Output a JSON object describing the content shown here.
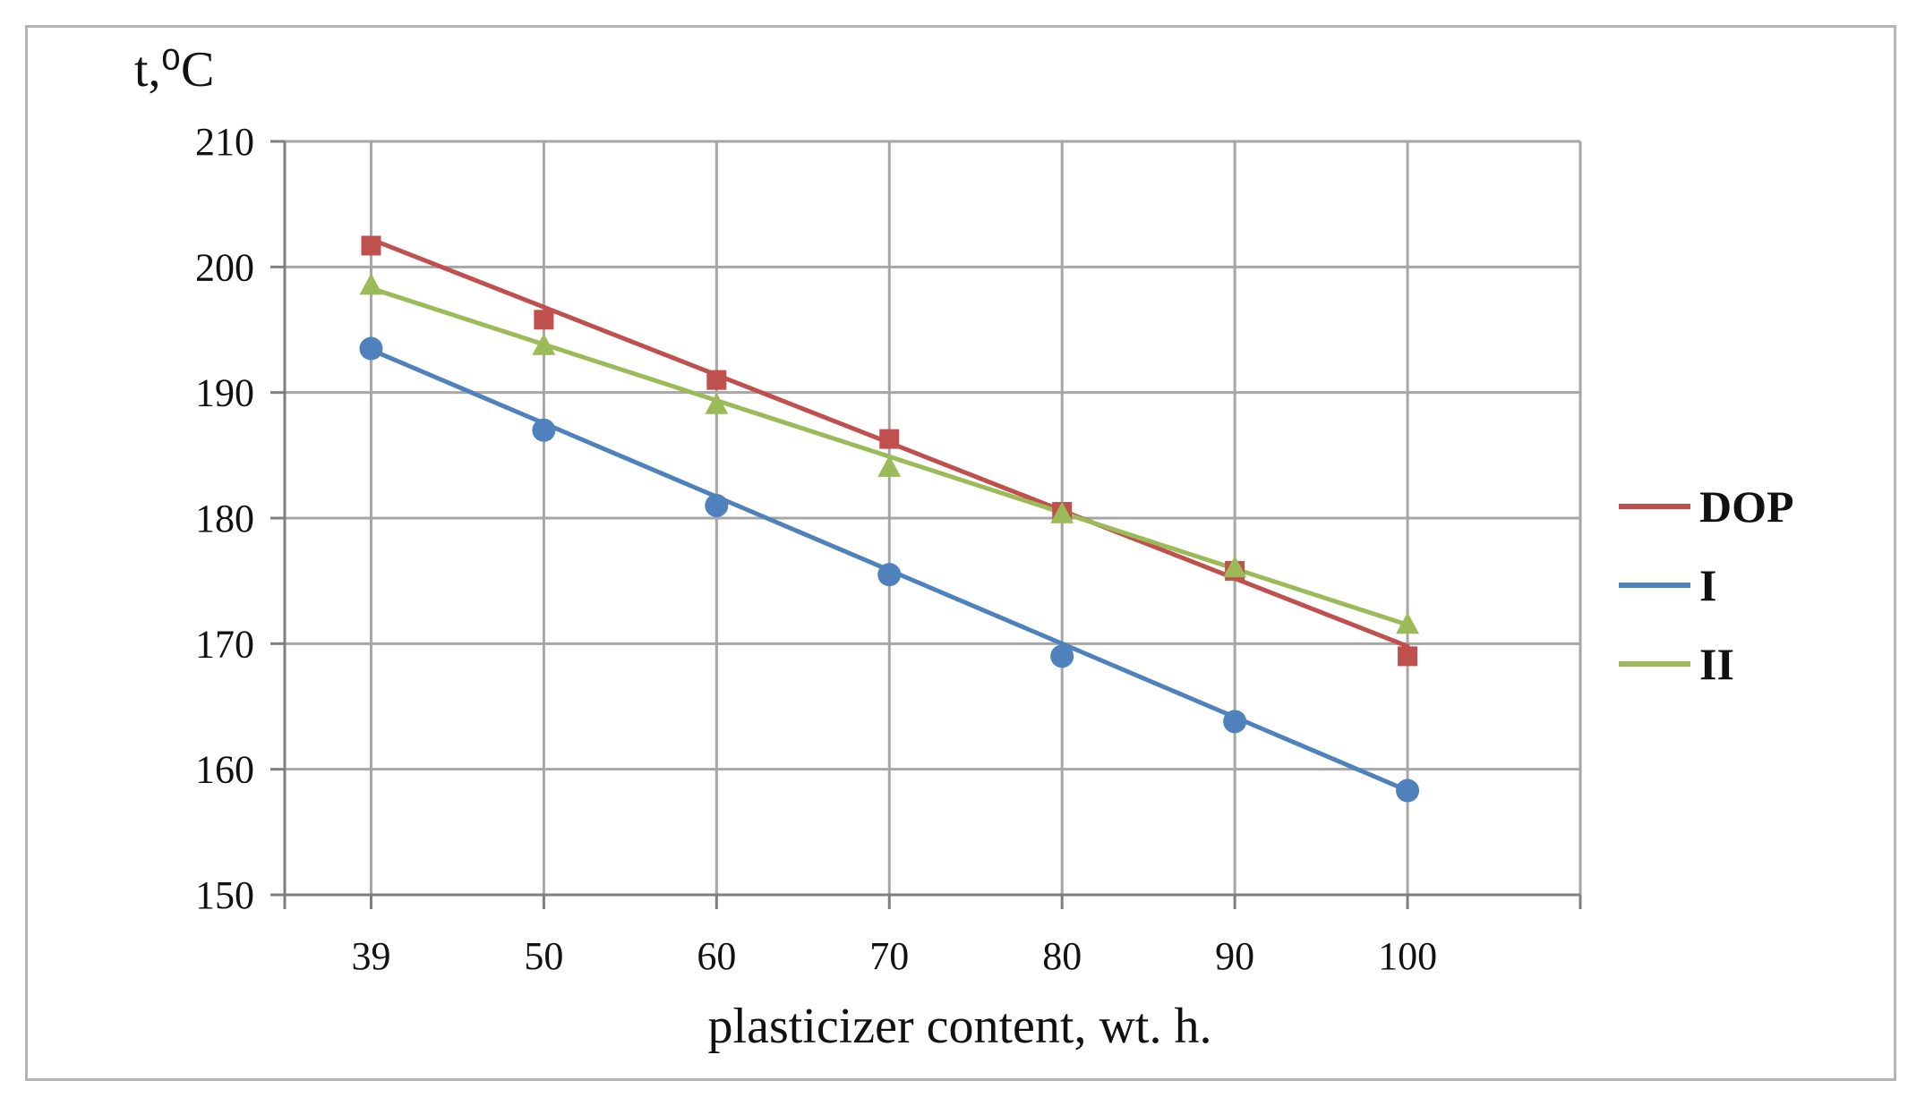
{
  "chart_data": {
    "type": "line",
    "title": "",
    "ylabel": "t,⁰C",
    "xlabel": "plasticizer content, wt. h.",
    "categories": [
      "39",
      "50",
      "60",
      "70",
      "80",
      "90",
      "100"
    ],
    "ylim": [
      150,
      210
    ],
    "yticks": [
      150,
      160,
      170,
      180,
      190,
      200,
      210
    ],
    "grid": true,
    "legend_position": "right",
    "series": [
      {
        "name": "DOP",
        "color": "#c0504d",
        "marker": "square",
        "values": [
          201.7,
          195.8,
          191.0,
          186.3,
          180.5,
          175.8,
          169.0
        ],
        "trend": [
          202.2,
          169.8
        ]
      },
      {
        "name": "I",
        "color": "#4f81bd",
        "marker": "circle",
        "values": [
          193.5,
          187.0,
          181.0,
          175.5,
          169.0,
          163.8,
          158.3
        ],
        "trend": [
          193.4,
          158.3
        ]
      },
      {
        "name": "II",
        "color": "#9bbb59",
        "marker": "triangle",
        "values": [
          198.5,
          193.7,
          189.0,
          184.0,
          180.3,
          176.0,
          171.5
        ],
        "trend": [
          198.3,
          171.5
        ]
      }
    ]
  }
}
